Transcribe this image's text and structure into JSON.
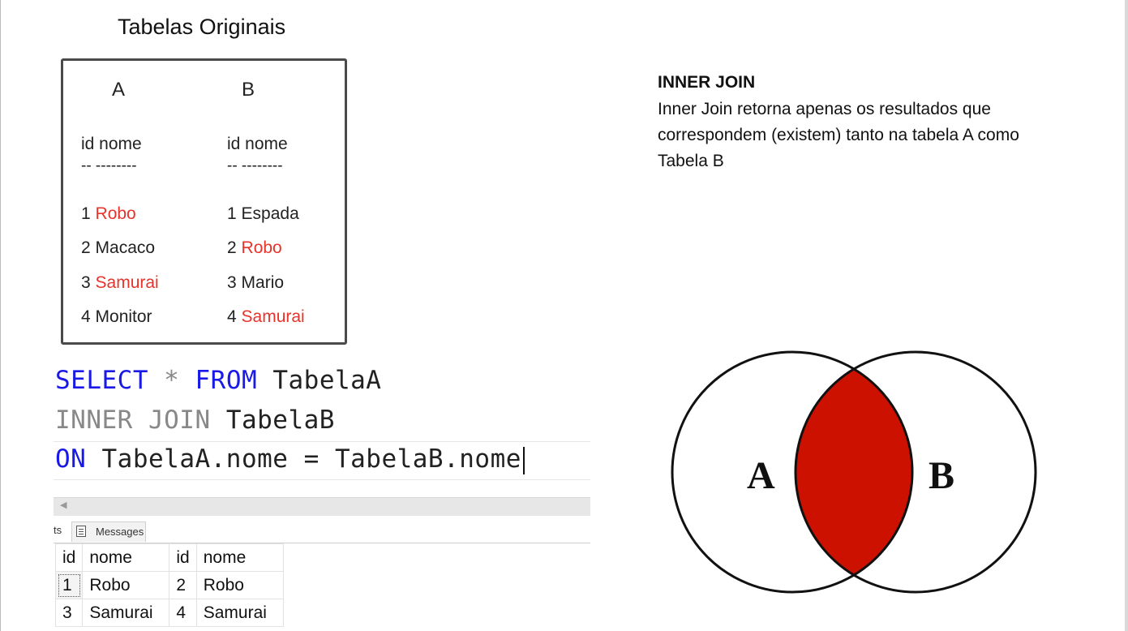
{
  "title": "Tabelas Originais",
  "table_a": {
    "header": "A",
    "columns": "id nome",
    "separator": "-- --------",
    "rows": [
      {
        "id": "1",
        "nome": "Robo",
        "match": true
      },
      {
        "id": "2",
        "nome": "Macaco",
        "match": false
      },
      {
        "id": "3",
        "nome": "Samurai",
        "match": true
      },
      {
        "id": "4",
        "nome": "Monitor",
        "match": false
      }
    ]
  },
  "table_b": {
    "header": "B",
    "columns": "id nome",
    "separator": "-- --------",
    "rows": [
      {
        "id": "1",
        "nome": "Espada",
        "match": false
      },
      {
        "id": "2",
        "nome": "Robo",
        "match": true
      },
      {
        "id": "3",
        "nome": "Mario",
        "match": false
      },
      {
        "id": "4",
        "nome": "Samurai",
        "match": true
      }
    ]
  },
  "sql": {
    "line1": {
      "kw1": "SELECT",
      "op": "*",
      "kw2": "FROM",
      "table": "TabelaA"
    },
    "line2": {
      "kw": "INNER JOIN",
      "table": "TabelaB"
    },
    "line3": {
      "kw": "ON",
      "expr": "TabelaA.nome = TabelaB.nome"
    }
  },
  "results_panel": {
    "results_tab_fragment": "ts",
    "messages_tab": "Messages",
    "columns": [
      "id",
      "nome",
      "id",
      "nome"
    ],
    "rows": [
      [
        "1",
        "Robo",
        "2",
        "Robo"
      ],
      [
        "3",
        "Samurai",
        "4",
        "Samurai"
      ]
    ]
  },
  "inner_join": {
    "title": "INNER JOIN",
    "description": "Inner Join retorna apenas os resultados que correspondem (existem) tanto na tabela A como Tabela B"
  },
  "venn": {
    "label_a": "A",
    "label_b": "B",
    "highlight_color": "#cc1100"
  },
  "colors": {
    "match_text": "#e8332b",
    "sql_keyword": "#1a1ae6",
    "sql_keyword_gray": "#888888"
  }
}
